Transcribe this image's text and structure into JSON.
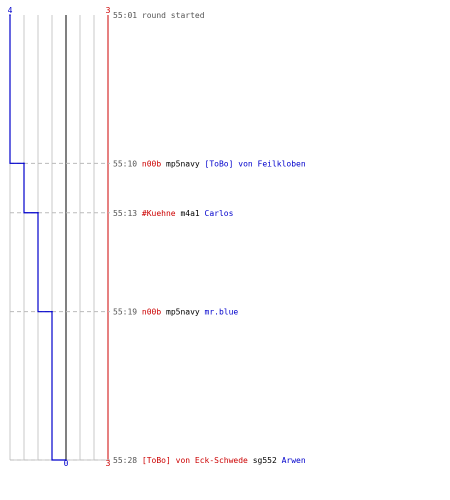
{
  "chart_data": {
    "type": "line",
    "title": "",
    "xlabel": "",
    "ylabel": "",
    "score_axis": {
      "blue_side_top": "4",
      "red_side_top": "3",
      "center_bottom": "0",
      "red_side_bottom": "3"
    },
    "score_range": [
      -3,
      4
    ],
    "time_range": [
      "55:01",
      "55:28"
    ],
    "series": [
      {
        "color": "#0000cc",
        "points": [
          {
            "time": "55:01",
            "score": 4
          },
          {
            "time": "55:10",
            "score": 3
          },
          {
            "time": "55:13",
            "score": 2
          },
          {
            "time": "55:19",
            "score": 1
          },
          {
            "time": "55:28",
            "score": 0
          }
        ]
      }
    ],
    "grid": true
  },
  "colors": {
    "blue_team": "#0000cc",
    "red_team": "#cc0000",
    "neutral_text": "#000000",
    "timestamp": "#555555",
    "gridline": "#c8c8c8",
    "center_line": "#808080"
  },
  "events": [
    {
      "time": "55:01",
      "parts": [
        {
          "text": "round started",
          "color": "#555555"
        }
      ]
    },
    {
      "time": "55:10",
      "parts": [
        {
          "text": "n00b",
          "color": "#cc0000"
        },
        {
          "text": "mp5navy",
          "color": "#000000"
        },
        {
          "text": "[ToBo] von Feilkloben",
          "color": "#0000cc"
        }
      ]
    },
    {
      "time": "55:13",
      "parts": [
        {
          "text": "#Kuehne",
          "color": "#cc0000"
        },
        {
          "text": "m4a1",
          "color": "#000000"
        },
        {
          "text": "Carlos",
          "color": "#0000cc"
        }
      ]
    },
    {
      "time": "55:19",
      "parts": [
        {
          "text": "n00b",
          "color": "#cc0000"
        },
        {
          "text": "mp5navy",
          "color": "#000000"
        },
        {
          "text": "mr.blue",
          "color": "#0000cc"
        }
      ]
    },
    {
      "time": "55:28",
      "parts": [
        {
          "text": "[ToBo] von Eck-Schwede",
          "color": "#cc0000"
        },
        {
          "text": "sg552",
          "color": "#000000"
        },
        {
          "text": "Arwen",
          "color": "#0000cc"
        }
      ]
    }
  ]
}
